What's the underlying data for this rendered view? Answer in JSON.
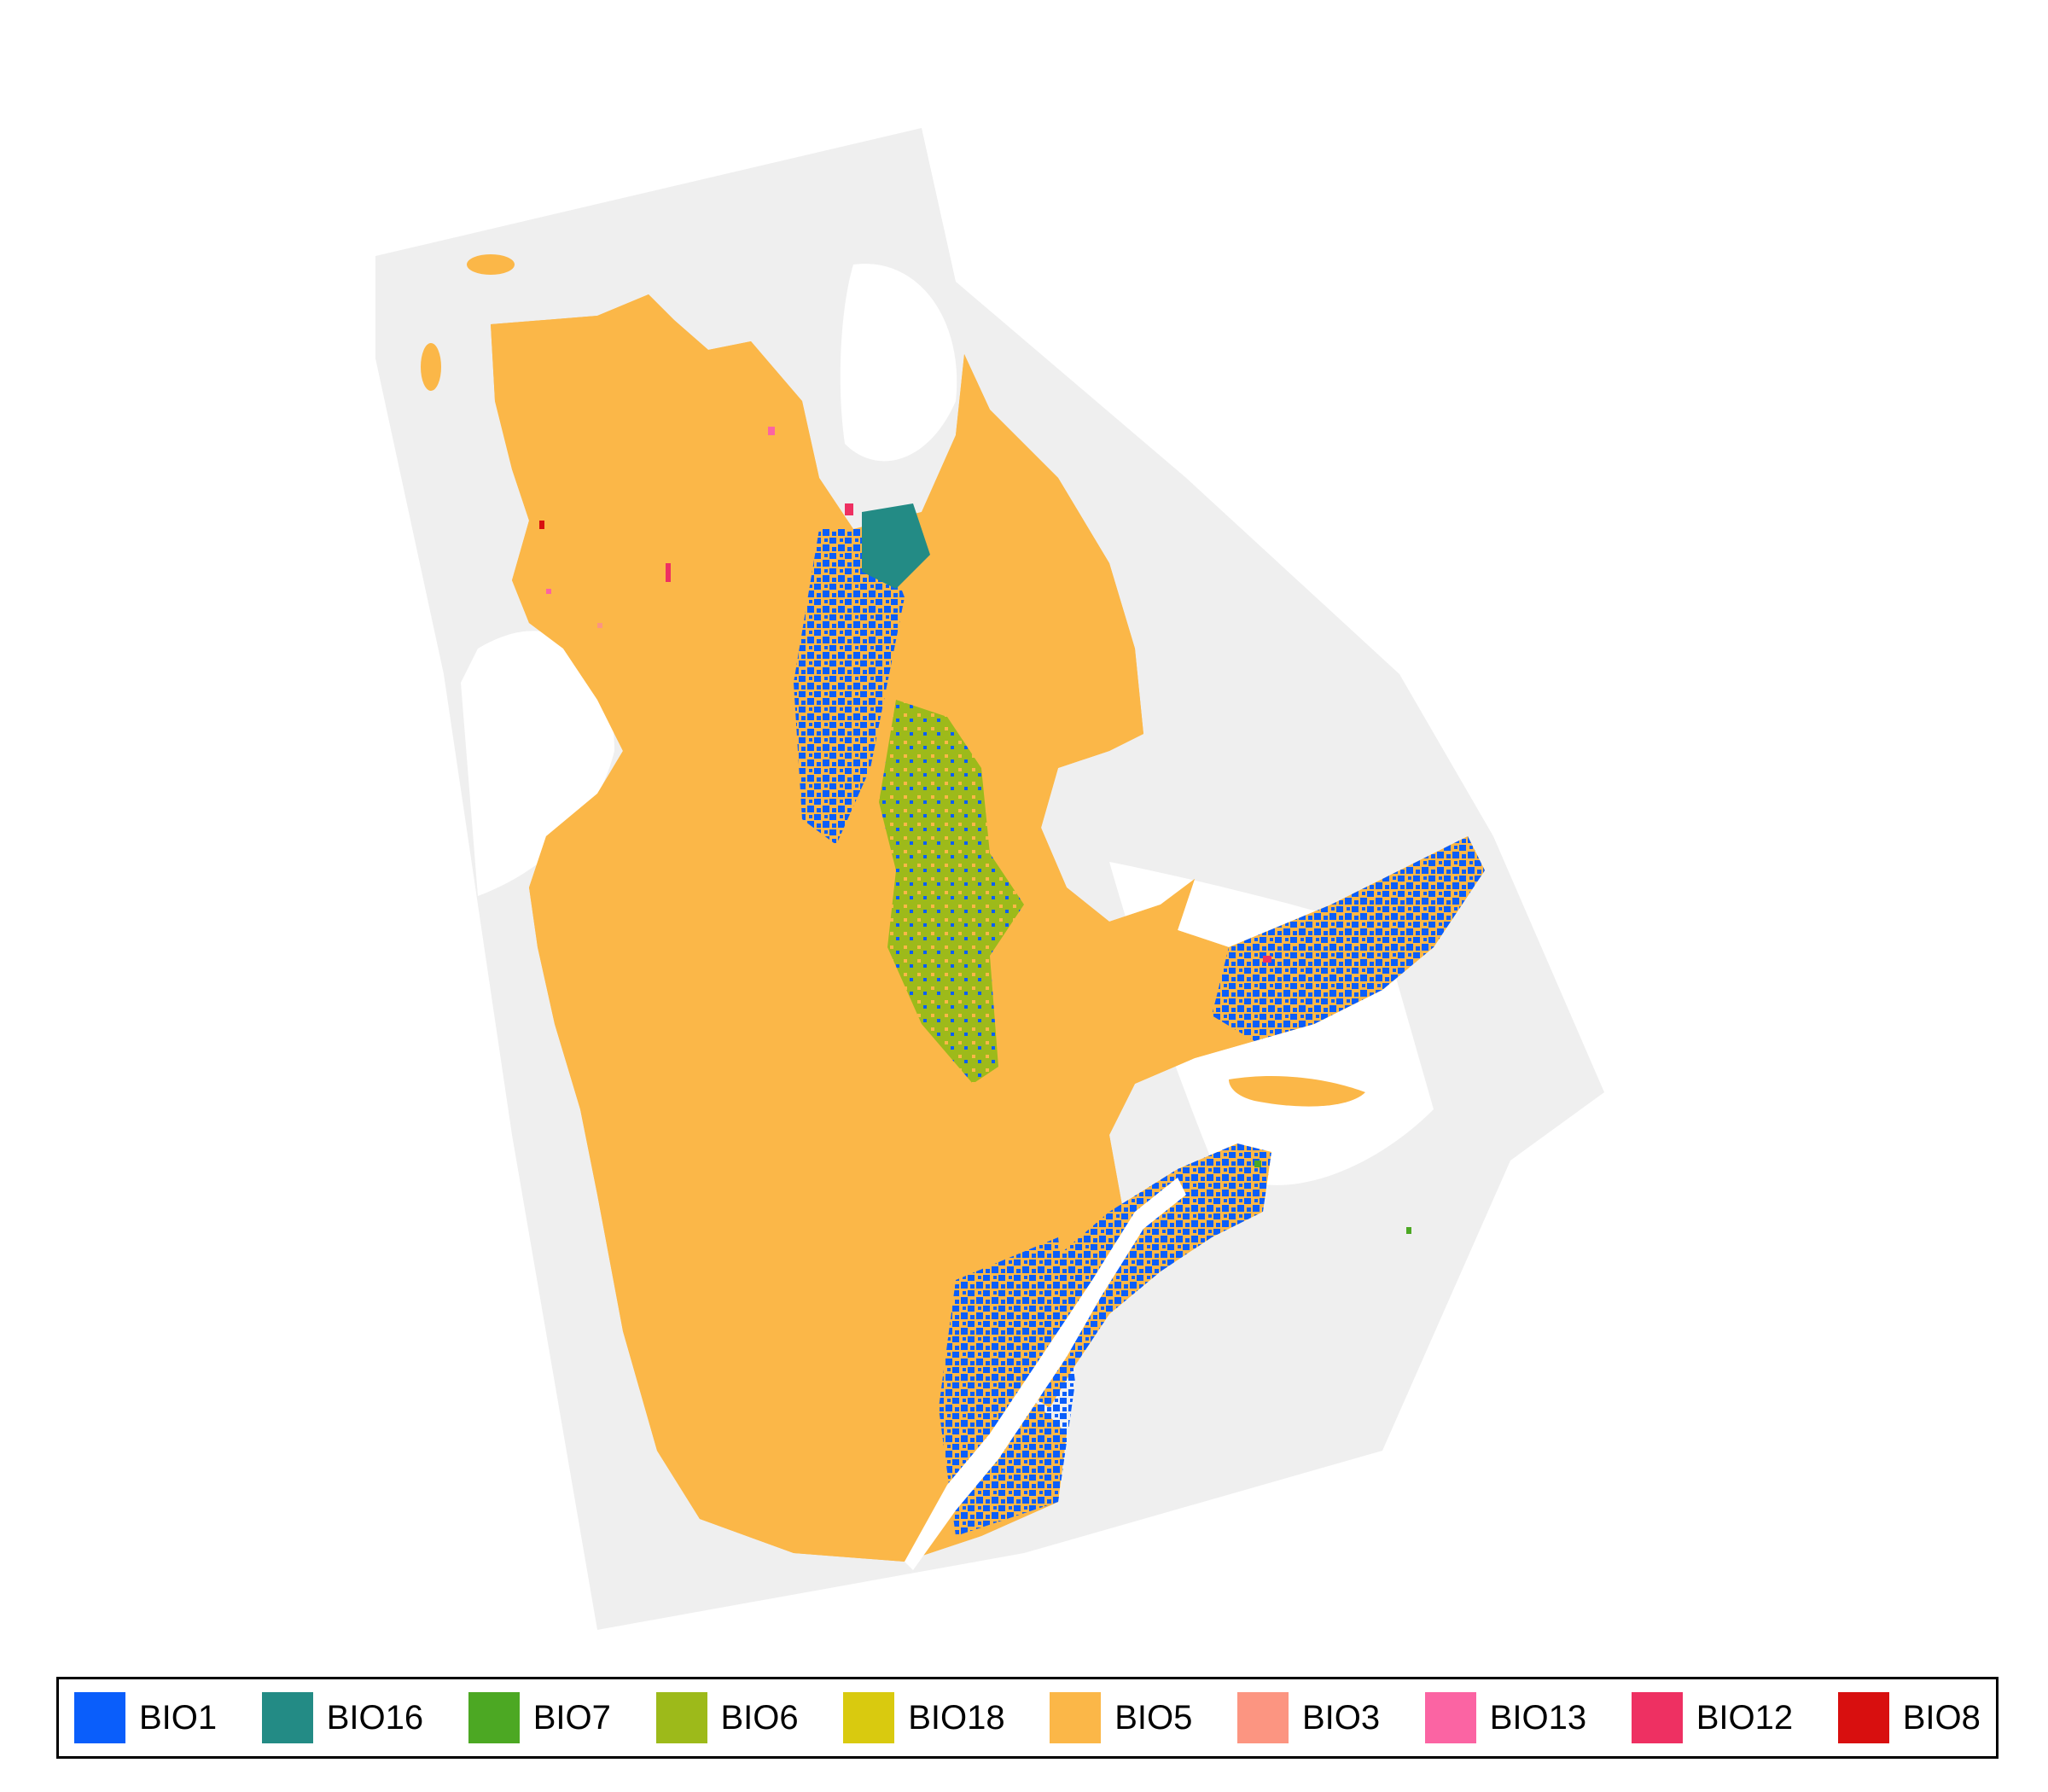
{
  "legend": {
    "items": [
      {
        "label": "BIO1",
        "color": "#0A5EFB"
      },
      {
        "label": "BIO16",
        "color": "#238B85"
      },
      {
        "label": "BIO7",
        "color": "#4CA823"
      },
      {
        "label": "BIO6",
        "color": "#9DBA1A"
      },
      {
        "label": "BIO18",
        "color": "#D9CA0F"
      },
      {
        "label": "BIO5",
        "color": "#FBB748"
      },
      {
        "label": "BIO3",
        "color": "#FC9581"
      },
      {
        "label": "BIO13",
        "color": "#FB64A3"
      },
      {
        "label": "BIO12",
        "color": "#EE3062"
      },
      {
        "label": "BIO8",
        "color": "#D80F0F"
      }
    ]
  },
  "map": {
    "background_region_color": "#EFEFEF",
    "dominant_variable": "BIO5",
    "secondary_variable": "BIO1"
  }
}
